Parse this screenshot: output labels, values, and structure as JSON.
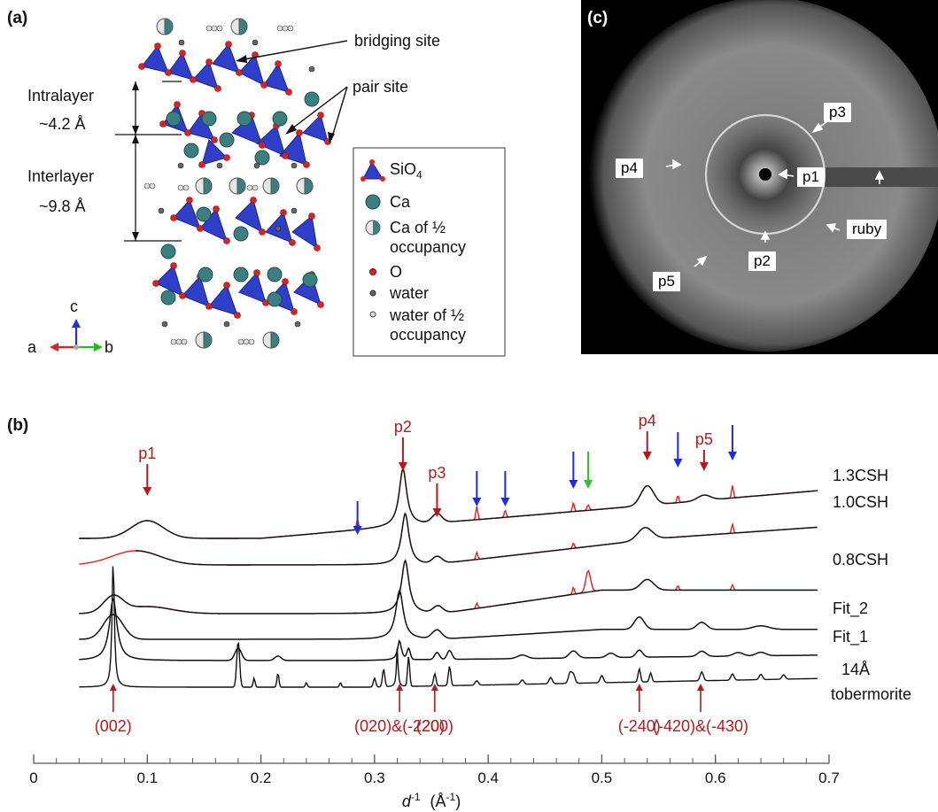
{
  "panel_a": {
    "label": "(a)",
    "annotations": {
      "bridging_site": "bridging site",
      "pair_site": "pair site"
    },
    "dimensions": {
      "intralayer_label": "Intralayer",
      "intralayer_value": "~4.2 Å",
      "interlayer_label": "Interlayer",
      "interlayer_value": "~9.8 Å"
    },
    "axes": {
      "c": "c",
      "a": "a",
      "b": "b"
    },
    "legend": [
      {
        "symbol": "tetrahedron",
        "label": "SiO",
        "sub": "4"
      },
      {
        "symbol": "ca-sphere",
        "label": "Ca"
      },
      {
        "symbol": "ca-half-sphere",
        "label": "Ca of ½ occupancy"
      },
      {
        "symbol": "o-dot",
        "label": "O"
      },
      {
        "symbol": "water-dot",
        "label": "water"
      },
      {
        "symbol": "water-half-dot",
        "label": "water of ½ occupancy"
      }
    ]
  },
  "panel_c": {
    "label": "(c)",
    "boxes": {
      "p1": "p1",
      "p2": "p2",
      "p3": "p3",
      "p4": "p4",
      "p5": "p5",
      "ruby": "ruby"
    }
  },
  "panel_b": {
    "label": "(b)"
  },
  "chart_data": {
    "type": "line",
    "xlabel_main": "d",
    "xlabel_sup": "-1",
    "xlabel_units": "(Å",
    "xlabel_units_sup": "-1",
    "xlabel_close": ")",
    "xlim": [
      0,
      0.7
    ],
    "xticks": [
      "0",
      "0.1",
      "0.2",
      "0.3",
      "0.4",
      "0.5",
      "0.6",
      "0.7"
    ],
    "series": [
      {
        "name": "1.3CSH",
        "color": "#111111",
        "kind": "fit"
      },
      {
        "name": "1.0CSH",
        "color": "#111111",
        "kind": "fit"
      },
      {
        "name": "0.8CSH",
        "color": "#111111",
        "kind": "fit"
      },
      {
        "name": "Fit_2",
        "color": "#111111",
        "kind": "model"
      },
      {
        "name": "Fit_1",
        "color": "#111111",
        "kind": "model"
      },
      {
        "name": "14Å",
        "name2": "tobermorite",
        "color": "#111111",
        "kind": "reference"
      }
    ],
    "peak_labels": [
      {
        "text": "p1",
        "x": 0.1
      },
      {
        "text": "p2",
        "x": 0.325
      },
      {
        "text": "p3",
        "x": 0.355
      },
      {
        "text": "p4",
        "x": 0.54
      },
      {
        "text": "p5",
        "x": 0.59
      }
    ],
    "blue_arrows_x": [
      0.285,
      0.39,
      0.415,
      0.475,
      0.567,
      0.615
    ],
    "green_arrows_x": [
      0.488
    ],
    "reflections": [
      {
        "text": "(002)",
        "x": 0.07
      },
      {
        "text": "(020)&(-220)",
        "x": 0.322
      },
      {
        "text": "(200)",
        "x": 0.353
      },
      {
        "text": "(-240)",
        "x": 0.533
      },
      {
        "text": "(-420)&(-430)",
        "x": 0.587
      }
    ],
    "colors": {
      "data": "#e02020",
      "fit": "#111111",
      "peak": "#b31b1b",
      "blue": "#1a2fd6",
      "green": "#2fc12f"
    }
  }
}
